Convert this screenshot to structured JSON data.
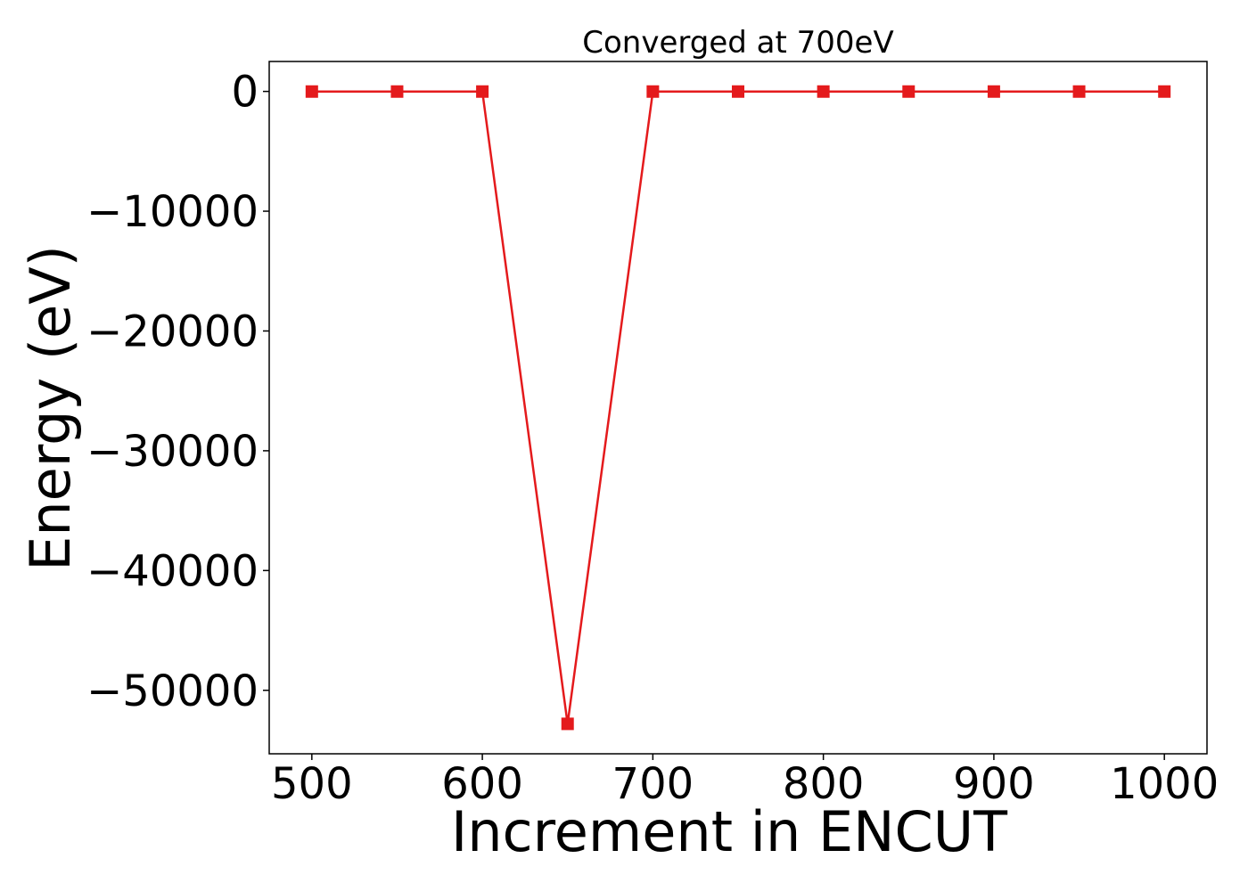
{
  "chart_data": {
    "type": "line",
    "title": "Converged at 700eV",
    "xlabel": "Increment in ENCUT",
    "ylabel": "Energy (eV)",
    "x": [
      500,
      550,
      600,
      650,
      700,
      750,
      800,
      850,
      900,
      950,
      1000
    ],
    "series": [
      {
        "values": [
          -10,
          -10,
          -10,
          -52800,
          -10,
          -10,
          -10,
          -10,
          -10,
          -10,
          -10
        ],
        "color": "#e41a1c",
        "marker": "square"
      }
    ],
    "xlim": [
      475,
      1025
    ],
    "ylim": [
      -55300,
      2500
    ],
    "xticks": [
      500,
      600,
      700,
      800,
      900,
      1000
    ],
    "xtick_labels": [
      "500",
      "600",
      "700",
      "800",
      "900",
      "1000"
    ],
    "yticks": [
      0,
      -10000,
      -20000,
      -30000,
      -40000,
      -50000
    ],
    "ytick_labels": [
      "0",
      "−10000",
      "−20000",
      "−30000",
      "−40000",
      "−50000"
    ],
    "grid": false,
    "legend": null
  }
}
